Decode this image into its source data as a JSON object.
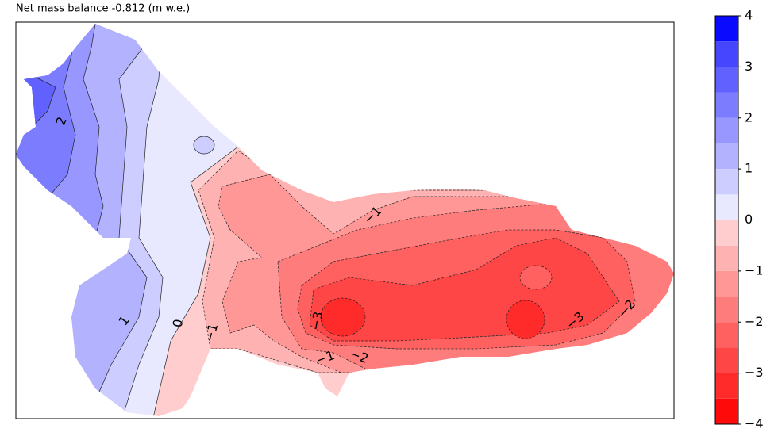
{
  "chart_data": {
    "type": "contour",
    "title": "Net mass balance -0.812 (m w.e.)",
    "levels": [
      -4,
      -3.5,
      -3,
      -2.5,
      -2,
      -1.5,
      -1,
      -0.5,
      0,
      0.5,
      1,
      1.5,
      2,
      2.5,
      3,
      3.5,
      4
    ],
    "colors": [
      "#ff0a0a",
      "#ff2b2b",
      "#ff4646",
      "#ff6161",
      "#ff7c7c",
      "#ff9797",
      "#ffb2b2",
      "#ffcdcd",
      "#e8e8ff",
      "#cdcdff",
      "#b2b2ff",
      "#9797ff",
      "#7c7cff",
      "#6161ff",
      "#4646ff",
      "#0a0aff"
    ],
    "colorbar_ticks": [
      {
        "value": -4,
        "label": "−4"
      },
      {
        "value": -3,
        "label": "−3"
      },
      {
        "value": -2,
        "label": "−2"
      },
      {
        "value": -1,
        "label": "−1"
      },
      0,
      1,
      2,
      3,
      4
    ],
    "contour_labels": [
      2,
      1,
      0,
      {
        "value": -1,
        "label": "−1"
      },
      {
        "value": -1,
        "label": "−1"
      },
      {
        "value": -1,
        "label": "−1"
      },
      {
        "value": -2,
        "label": "−2"
      },
      {
        "value": -2,
        "label": "−2"
      },
      {
        "value": -3,
        "label": "−3"
      },
      {
        "value": -3,
        "label": "−3"
      }
    ]
  }
}
